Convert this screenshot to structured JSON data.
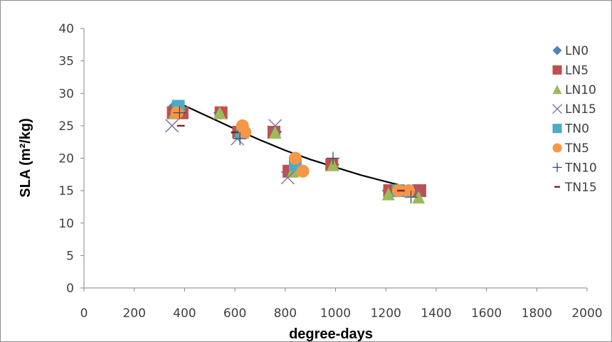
{
  "chart_data": {
    "type": "scatter",
    "xlabel": "degree-days",
    "ylabel": "SLA (m²/kg)",
    "xlim": [
      0,
      2000
    ],
    "ylim": [
      0,
      40
    ],
    "x_ticks": [
      0,
      200,
      400,
      600,
      800,
      1000,
      1200,
      1400,
      1600,
      1800,
      2000
    ],
    "y_ticks": [
      0,
      5,
      10,
      15,
      20,
      25,
      30,
      35,
      40
    ],
    "legend_position": "right",
    "grid": false,
    "series": [
      {
        "name": "LN0",
        "marker": "diamond",
        "color": "#4f81bd",
        "points": [
          [
            360,
            28
          ],
          [
            380,
            27
          ],
          [
            540,
            27
          ],
          [
            620,
            24
          ],
          [
            760,
            24
          ],
          [
            820,
            18
          ],
          [
            990,
            19
          ],
          [
            1210,
            15
          ],
          [
            1330,
            15
          ]
        ]
      },
      {
        "name": "LN5",
        "marker": "square",
        "color": "#c0504d",
        "points": [
          [
            355,
            27
          ],
          [
            390,
            27
          ],
          [
            545,
            27
          ],
          [
            615,
            24
          ],
          [
            755,
            24
          ],
          [
            815,
            18
          ],
          [
            985,
            19
          ],
          [
            1215,
            15
          ],
          [
            1335,
            15
          ]
        ]
      },
      {
        "name": "LN10",
        "marker": "triangle",
        "color": "#9bbb59",
        "points": [
          [
            360,
            27
          ],
          [
            540,
            27
          ],
          [
            620,
            24
          ],
          [
            760,
            24
          ],
          [
            830,
            18
          ],
          [
            990,
            19
          ],
          [
            1210,
            14.5
          ],
          [
            1330,
            14
          ]
        ]
      },
      {
        "name": "LN15",
        "marker": "x",
        "color": "#8064a2",
        "points": [
          [
            350,
            25
          ],
          [
            610,
            23
          ],
          [
            760,
            25
          ],
          [
            810,
            17
          ],
          [
            1330,
            15
          ]
        ]
      },
      {
        "name": "TN0",
        "marker": "square",
        "color": "#4aacc6",
        "points": [
          [
            375,
            28
          ],
          [
            630,
            24
          ],
          [
            840,
            19
          ],
          [
            1250,
            15
          ]
        ]
      },
      {
        "name": "TN5",
        "marker": "circle",
        "color": "#f79646",
        "points": [
          [
            370,
            27
          ],
          [
            630,
            25
          ],
          [
            640,
            24
          ],
          [
            840,
            20
          ],
          [
            870,
            18
          ],
          [
            1250,
            15
          ],
          [
            1290,
            15
          ]
        ]
      },
      {
        "name": "TN10",
        "marker": "plus",
        "color": "#2c4d75",
        "points": [
          [
            380,
            27
          ],
          [
            620,
            23
          ],
          [
            990,
            20
          ],
          [
            1300,
            14
          ]
        ]
      },
      {
        "name": "TN15",
        "marker": "dash",
        "color": "#772c2a",
        "points": [
          [
            385,
            25
          ],
          [
            600,
            24
          ],
          [
            1260,
            15
          ]
        ]
      }
    ],
    "trendline": {
      "color": "#000000",
      "points": [
        [
          360,
          28.8
        ],
        [
          500,
          26.3
        ],
        [
          600,
          24.5
        ],
        [
          700,
          22.8
        ],
        [
          800,
          21.2
        ],
        [
          900,
          19.8
        ],
        [
          1000,
          18.6
        ],
        [
          1100,
          17.4
        ],
        [
          1200,
          16.4
        ],
        [
          1300,
          15.4
        ],
        [
          1340,
          15
        ]
      ]
    }
  }
}
